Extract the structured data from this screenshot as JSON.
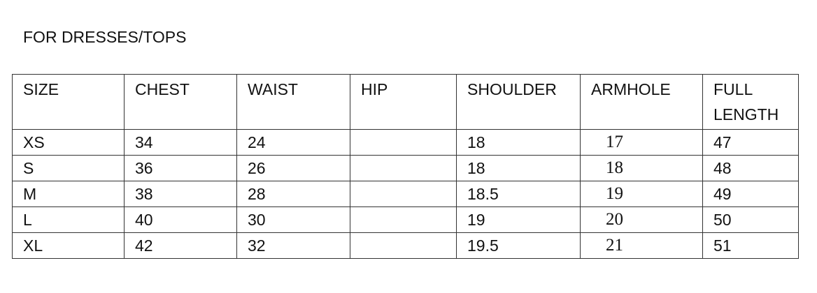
{
  "title": "FOR DRESSES/TOPS",
  "headers": [
    "SIZE",
    "CHEST",
    "WAIST",
    "HIP",
    "SHOULDER",
    "ARMHOLE",
    "FULL LENGTH"
  ],
  "rows": [
    [
      "XS",
      "34",
      "24",
      "",
      "18",
      "17",
      "47"
    ],
    [
      "S",
      "36",
      "26",
      "",
      "18",
      "18",
      "48"
    ],
    [
      "M",
      "38",
      "28",
      "",
      "18.5",
      "19",
      "49"
    ],
    [
      "L",
      "40",
      "30",
      "",
      "19",
      "20",
      "50"
    ],
    [
      "XL",
      "42",
      "32",
      "",
      "19.5",
      "21",
      "51"
    ]
  ]
}
